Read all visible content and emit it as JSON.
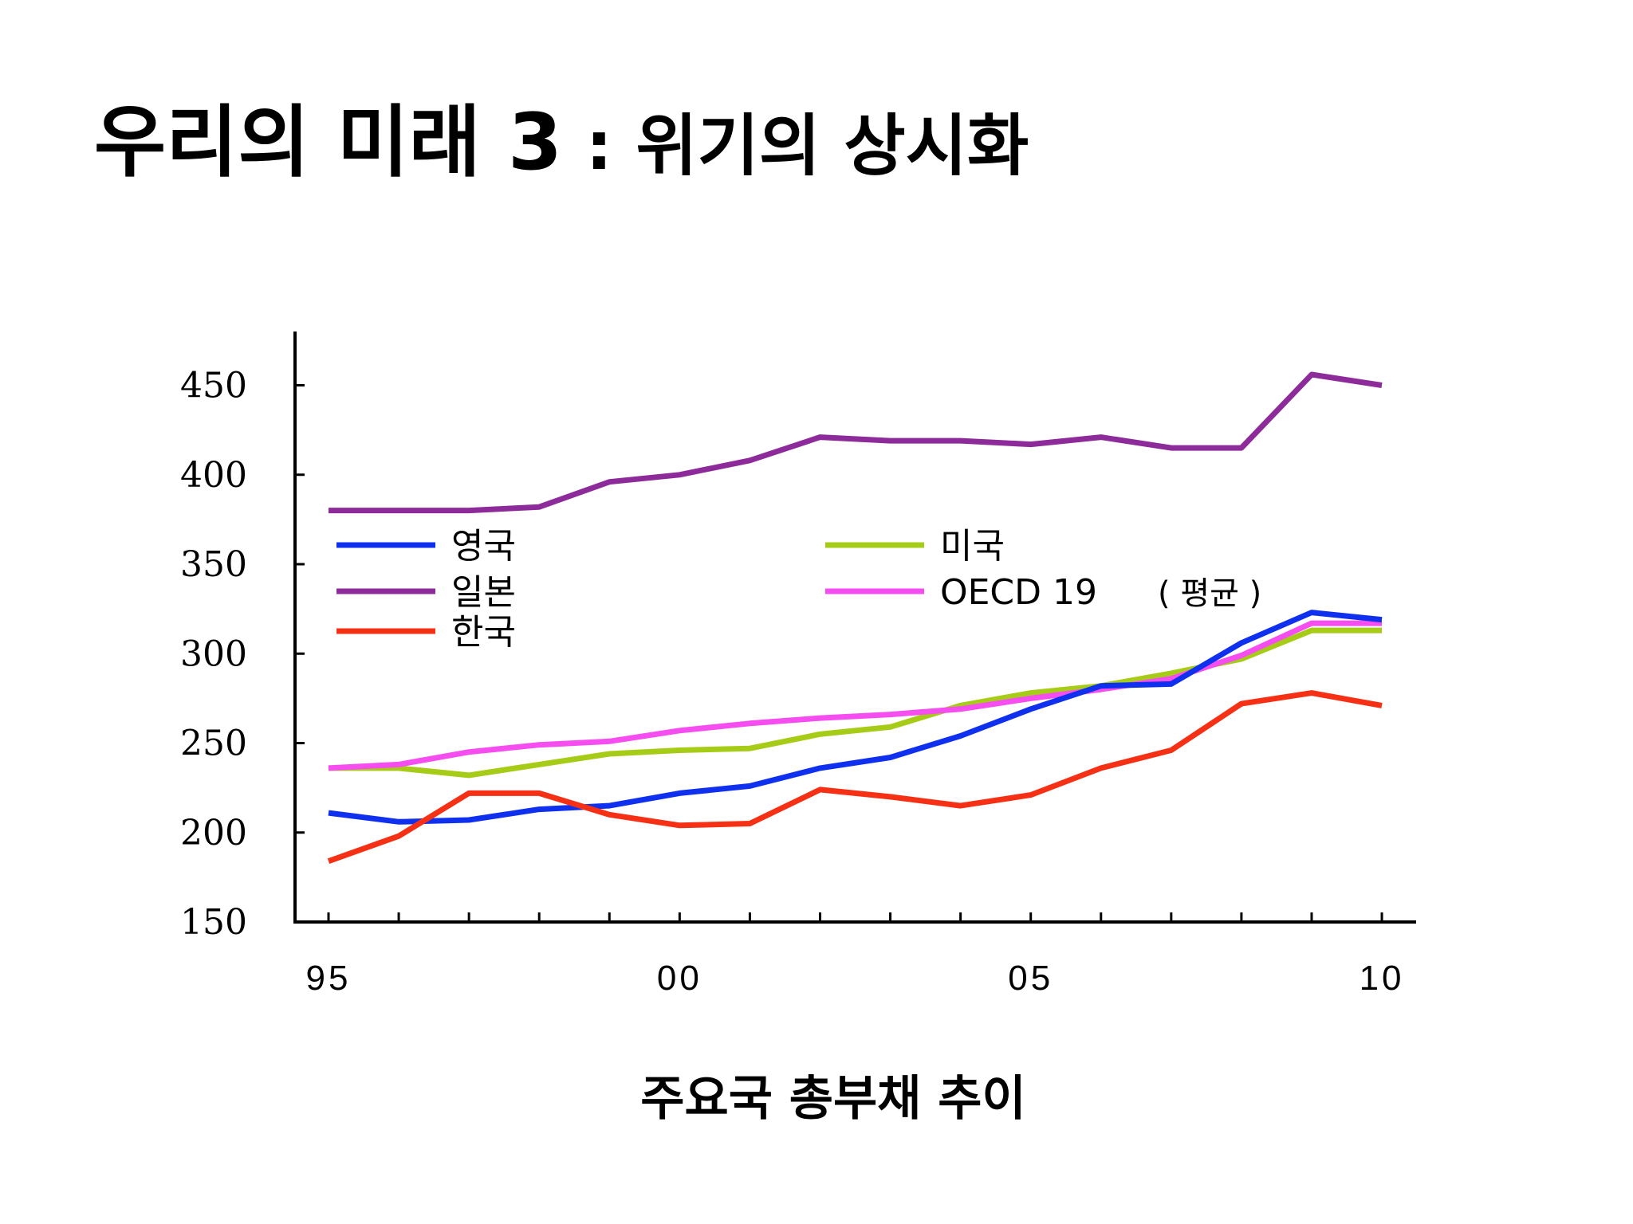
{
  "title": {
    "main": "우리의 미래 3",
    "separator": " : ",
    "sub": "위기의 상시화"
  },
  "caption": "주요국 총부채 추이",
  "chart_data": {
    "type": "line",
    "title": "주요국 총부채 추이",
    "xlabel": "",
    "ylabel": "",
    "ylim": [
      150,
      475
    ],
    "yticks": [
      150,
      200,
      250,
      300,
      350,
      400,
      450
    ],
    "xlim": [
      1994.5,
      2010.5
    ],
    "x": [
      1995,
      1996,
      1997,
      1998,
      1999,
      2000,
      2001,
      2002,
      2003,
      2004,
      2005,
      2006,
      2007,
      2008,
      2009,
      2010
    ],
    "xtick_labels": [
      {
        "x": 1995,
        "label": "95"
      },
      {
        "x": 2000,
        "label": "00"
      },
      {
        "x": 2005,
        "label": "05"
      },
      {
        "x": 2010,
        "label": "10"
      }
    ],
    "grid": false,
    "series": [
      {
        "name": "영국",
        "color": "#1030f0",
        "values": [
          211,
          206,
          207,
          213,
          215,
          222,
          226,
          236,
          242,
          254,
          269,
          282,
          283,
          306,
          323,
          319
        ]
      },
      {
        "name": "일본",
        "color": "#8e2b9a",
        "values": [
          380,
          380,
          380,
          382,
          396,
          400,
          408,
          421,
          419,
          419,
          417,
          421,
          415,
          415,
          456,
          450
        ]
      },
      {
        "name": "한국",
        "color": "#f53015",
        "values": [
          184,
          198,
          222,
          222,
          210,
          204,
          205,
          224,
          220,
          215,
          221,
          236,
          246,
          272,
          278,
          271
        ]
      },
      {
        "name": "미국",
        "color": "#a6cc17",
        "values": [
          236,
          236,
          232,
          238,
          244,
          246,
          247,
          255,
          259,
          271,
          278,
          282,
          289,
          297,
          313,
          313
        ]
      },
      {
        "name": "OECD 19",
        "color": "#f54df0",
        "values": [
          236,
          238,
          245,
          249,
          251,
          257,
          261,
          264,
          266,
          269,
          275,
          280,
          286,
          299,
          317,
          317
        ]
      }
    ],
    "legend": {
      "position": "inside-top",
      "oecd_suffix": "( 평균 )"
    }
  }
}
